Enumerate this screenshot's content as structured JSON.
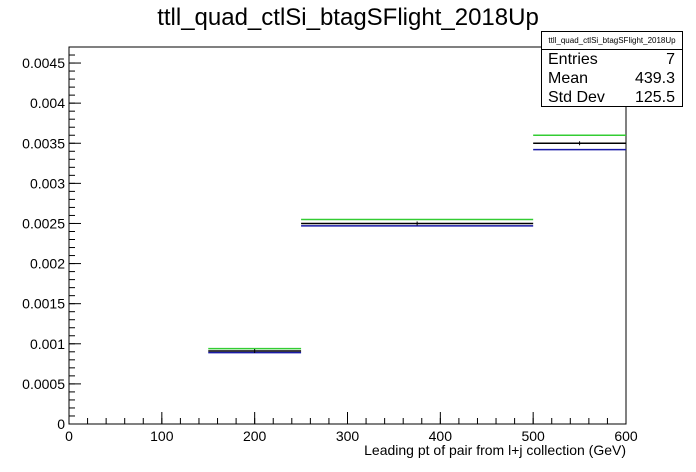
{
  "title": "ttll_quad_ctlSi_btagSFlight_2018Up",
  "stats": {
    "name": "ttll_quad_ctlSi_btagSFlight_2018Up",
    "rows": [
      {
        "label": "Entries",
        "value": "7"
      },
      {
        "label": "Mean",
        "value": "439.3"
      },
      {
        "label": "Std Dev",
        "value": "125.5"
      }
    ]
  },
  "colors": {
    "nominal": "#000000",
    "up": "#33cc33",
    "down": "#1a1aa6"
  },
  "chart_data": {
    "type": "bar",
    "title": "ttll_quad_ctlSi_btagSFlight_2018Up",
    "xlabel": "Leading pt of pair from l+j collection (GeV)",
    "ylabel": "",
    "xlim": [
      0,
      600
    ],
    "ylim": [
      0,
      0.0047
    ],
    "xticks": [
      0,
      100,
      200,
      300,
      400,
      500,
      600
    ],
    "xtick_labels": [
      "0",
      "100",
      "200",
      "300",
      "400",
      "500",
      "600"
    ],
    "yticks": [
      0,
      0.0005,
      0.001,
      0.0015,
      0.002,
      0.0025,
      0.003,
      0.0035,
      0.004,
      0.0045
    ],
    "ytick_labels": [
      "0",
      "0.0005",
      "0.001",
      "0.0015",
      "0.002",
      "0.0025",
      "0.003",
      "0.0035",
      "0.004",
      "0.0045"
    ],
    "bins": [
      [
        0,
        150
      ],
      [
        150,
        250
      ],
      [
        250,
        500
      ],
      [
        500,
        600
      ]
    ],
    "series": [
      {
        "values": [
          0,
          0.00091,
          0.0025,
          0.0035
        ],
        "color": "#000000"
      },
      {
        "values": [
          0,
          0.00094,
          0.00255,
          0.0036
        ],
        "color": "#33cc33"
      },
      {
        "values": [
          0,
          0.00089,
          0.00247,
          0.00342
        ],
        "color": "#1a1aa6"
      }
    ]
  }
}
